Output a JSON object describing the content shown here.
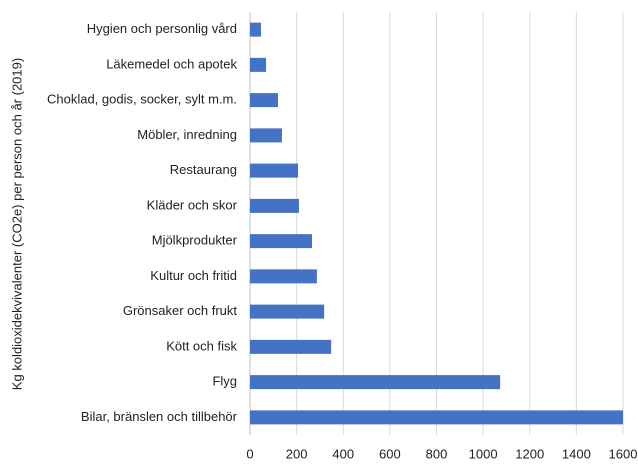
{
  "chart_data": {
    "type": "barh",
    "ylabel": "Kg koldioxidekvivalenter (CO2e) per person och år (2019)",
    "categories": [
      "Hygien och personlig vård",
      "Läkemedel och apotek",
      "Choklad, godis, socker, sylt m.m.",
      "Möbler, inredning",
      "Restaurang",
      "Kläder och skor",
      "Mjölkprodukter",
      "Kultur och fritid",
      "Grönsaker och frukt",
      "Kött och fisk",
      "Flyg",
      "Bilar, bränslen och tillbehör"
    ],
    "values": [
      47,
      69,
      120,
      137,
      206,
      210,
      266,
      287,
      318,
      348,
      1073,
      1600
    ],
    "color": "#4472c4",
    "xlim": [
      0,
      1600
    ],
    "xticks": [
      0,
      200,
      400,
      600,
      800,
      1000,
      1200,
      1400,
      1600
    ],
    "grid": true
  }
}
